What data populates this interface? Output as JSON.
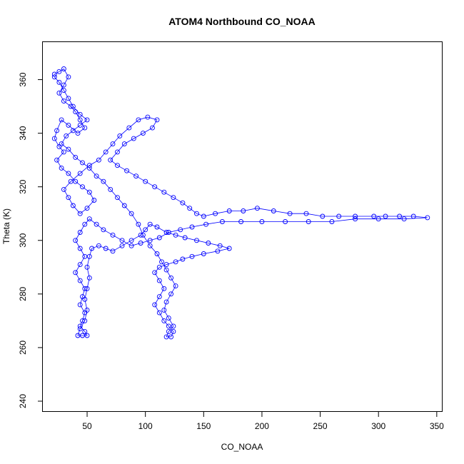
{
  "chart_data": {
    "type": "scatter",
    "title": "ATOM4 Northbound CO_NOAA",
    "xlabel": "CO_NOAA",
    "ylabel": "Theta (K)",
    "xlim": [
      12,
      355
    ],
    "ylim": [
      236,
      374
    ],
    "x_ticks": [
      50,
      100,
      150,
      200,
      250,
      300,
      350
    ],
    "y_ticks": [
      240,
      260,
      280,
      300,
      320,
      340,
      360
    ],
    "grid": false,
    "legend": "none",
    "series_color": "#0000ff",
    "marker": "open circle connected by line",
    "series": [
      {
        "points": [
          [
            22,
            362
          ],
          [
            26,
            363
          ],
          [
            30,
            364
          ],
          [
            34,
            361
          ],
          [
            30,
            358
          ],
          [
            26,
            355
          ],
          [
            30,
            352
          ],
          [
            36,
            350
          ],
          [
            40,
            348
          ],
          [
            44,
            345
          ],
          [
            48,
            342
          ],
          [
            42,
            340
          ],
          [
            34,
            343
          ],
          [
            28,
            345
          ],
          [
            24,
            341
          ],
          [
            22,
            338
          ],
          [
            26,
            335
          ],
          [
            30,
            333
          ],
          [
            24,
            330
          ],
          [
            28,
            327
          ],
          [
            34,
            325
          ],
          [
            40,
            322
          ],
          [
            46,
            320
          ],
          [
            52,
            318
          ],
          [
            56,
            315
          ],
          [
            50,
            312
          ],
          [
            44,
            310
          ],
          [
            38,
            313
          ],
          [
            34,
            316
          ],
          [
            30,
            319
          ],
          [
            36,
            322
          ],
          [
            44,
            325
          ],
          [
            52,
            328
          ],
          [
            60,
            330
          ],
          [
            66,
            333
          ],
          [
            72,
            336
          ],
          [
            78,
            339
          ],
          [
            86,
            342
          ],
          [
            94,
            345
          ],
          [
            102,
            346
          ],
          [
            110,
            345
          ],
          [
            106,
            342
          ],
          [
            98,
            340
          ],
          [
            90,
            338
          ],
          [
            82,
            336
          ],
          [
            76,
            333
          ],
          [
            70,
            330
          ],
          [
            76,
            328
          ],
          [
            84,
            326
          ],
          [
            92,
            324
          ],
          [
            100,
            322
          ],
          [
            108,
            320
          ],
          [
            116,
            318
          ],
          [
            124,
            316
          ],
          [
            132,
            314
          ],
          [
            138,
            312
          ],
          [
            144,
            310
          ],
          [
            150,
            309
          ],
          [
            160,
            310
          ],
          [
            172,
            311
          ],
          [
            184,
            311
          ],
          [
            196,
            312
          ],
          [
            210,
            311
          ],
          [
            224,
            310
          ],
          [
            238,
            310
          ],
          [
            252,
            309
          ],
          [
            266,
            309
          ],
          [
            280,
            309
          ],
          [
            296,
            309
          ],
          [
            306,
            309
          ],
          [
            318,
            309
          ],
          [
            330,
            309
          ],
          [
            342,
            308.5
          ],
          [
            322,
            308
          ],
          [
            300,
            308
          ],
          [
            280,
            308
          ],
          [
            260,
            307
          ],
          [
            240,
            307
          ],
          [
            220,
            307
          ],
          [
            200,
            307
          ],
          [
            182,
            307
          ],
          [
            166,
            307
          ],
          [
            152,
            306
          ],
          [
            140,
            305
          ],
          [
            130,
            304
          ],
          [
            120,
            303
          ],
          [
            112,
            301
          ],
          [
            104,
            300
          ],
          [
            96,
            299
          ],
          [
            88,
            298
          ],
          [
            80,
            300
          ],
          [
            72,
            302
          ],
          [
            64,
            304
          ],
          [
            58,
            306
          ],
          [
            52,
            308
          ],
          [
            48,
            306
          ],
          [
            44,
            303
          ],
          [
            40,
            300
          ],
          [
            44,
            297
          ],
          [
            48,
            294
          ],
          [
            44,
            291
          ],
          [
            40,
            288
          ],
          [
            44,
            285
          ],
          [
            48,
            282
          ],
          [
            46,
            279
          ],
          [
            44,
            276
          ],
          [
            48,
            273
          ],
          [
            46,
            270
          ],
          [
            44,
            268
          ],
          [
            48,
            266
          ],
          [
            50,
            264.5
          ],
          [
            46,
            264.5
          ],
          [
            42,
            264.5
          ],
          [
            44,
            267
          ],
          [
            48,
            270
          ],
          [
            50,
            274
          ],
          [
            48,
            278
          ],
          [
            50,
            282
          ],
          [
            52,
            286
          ],
          [
            50,
            290
          ],
          [
            52,
            294
          ],
          [
            54,
            297
          ],
          [
            60,
            298
          ],
          [
            66,
            297
          ],
          [
            72,
            296
          ],
          [
            80,
            298
          ],
          [
            88,
            300
          ],
          [
            96,
            302
          ],
          [
            100,
            304
          ],
          [
            104,
            306
          ],
          [
            110,
            305
          ],
          [
            118,
            303
          ],
          [
            126,
            302
          ],
          [
            134,
            301
          ],
          [
            144,
            300
          ],
          [
            154,
            299
          ],
          [
            164,
            298
          ],
          [
            172,
            297
          ],
          [
            162,
            296
          ],
          [
            150,
            295
          ],
          [
            140,
            294
          ],
          [
            132,
            293
          ],
          [
            126,
            292
          ],
          [
            118,
            291
          ],
          [
            112,
            290
          ],
          [
            108,
            288
          ],
          [
            112,
            285
          ],
          [
            116,
            282
          ],
          [
            112,
            279
          ],
          [
            108,
            276
          ],
          [
            112,
            273
          ],
          [
            116,
            270
          ],
          [
            120,
            268
          ],
          [
            124,
            266
          ],
          [
            122,
            264
          ],
          [
            118,
            264
          ],
          [
            120,
            266
          ],
          [
            124,
            268
          ],
          [
            120,
            271
          ],
          [
            116,
            274
          ],
          [
            118,
            277
          ],
          [
            122,
            280
          ],
          [
            126,
            283
          ],
          [
            122,
            286
          ],
          [
            118,
            289
          ],
          [
            114,
            292
          ],
          [
            110,
            295
          ],
          [
            104,
            298
          ],
          [
            98,
            302
          ],
          [
            94,
            306
          ],
          [
            88,
            310
          ],
          [
            82,
            313
          ],
          [
            76,
            316
          ],
          [
            70,
            319
          ],
          [
            64,
            322
          ],
          [
            58,
            324
          ],
          [
            52,
            327
          ],
          [
            46,
            329
          ],
          [
            40,
            331
          ],
          [
            34,
            334
          ],
          [
            28,
            336
          ],
          [
            32,
            339
          ],
          [
            38,
            341
          ],
          [
            44,
            343
          ],
          [
            50,
            345
          ],
          [
            44,
            347
          ],
          [
            38,
            350
          ],
          [
            34,
            353
          ],
          [
            30,
            356
          ],
          [
            26,
            359
          ],
          [
            22,
            361
          ]
        ]
      }
    ]
  }
}
